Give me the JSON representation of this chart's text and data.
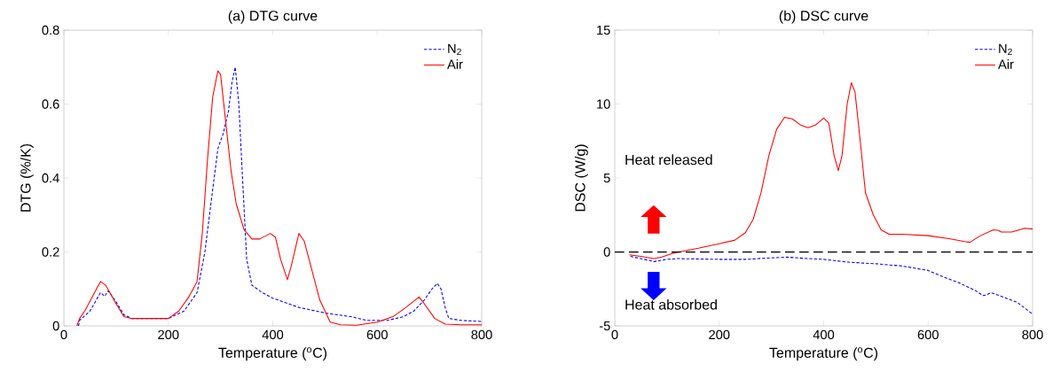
{
  "chart_data": [
    {
      "type": "line",
      "title": "(a) DTG curve",
      "xlabel": "Temperature ($^{o}$C)",
      "ylabel": "DTG (%/K)",
      "xlim": [
        0,
        800
      ],
      "ylim": [
        0,
        0.8
      ],
      "xticks": [
        0,
        200,
        400,
        600,
        800
      ],
      "yticks": [
        0,
        0.2,
        0.4,
        0.6,
        0.8
      ],
      "legend": "top right",
      "marker": "none",
      "series": [
        {
          "name": "N$_{2}$",
          "color": "#0000ff",
          "line_style": "dashed",
          "x": [
            28,
            30,
            50,
            70,
            78,
            85,
            100,
            115,
            130,
            200,
            230,
            255,
            270,
            285,
            295,
            305,
            315,
            322,
            328,
            335,
            342,
            350,
            360,
            380,
            400,
            450,
            500,
            550,
            580,
            620,
            650,
            670,
            690,
            705,
            715,
            722,
            730,
            737,
            760,
            800
          ],
          "values": [
            0,
            0.015,
            0.04,
            0.09,
            0.08,
            0.095,
            0.065,
            0.03,
            0.02,
            0.02,
            0.04,
            0.09,
            0.2,
            0.37,
            0.48,
            0.52,
            0.58,
            0.66,
            0.7,
            0.6,
            0.4,
            0.18,
            0.11,
            0.09,
            0.075,
            0.05,
            0.035,
            0.025,
            0.015,
            0.015,
            0.025,
            0.04,
            0.07,
            0.1,
            0.115,
            0.1,
            0.05,
            0.02,
            0.015,
            0.012
          ]
        },
        {
          "name": "Air",
          "color": "#ff0000",
          "line_style": "solid",
          "x": [
            25,
            30,
            40,
            55,
            70,
            80,
            100,
            115,
            130,
            160,
            200,
            220,
            240,
            255,
            265,
            275,
            285,
            295,
            300,
            310,
            320,
            330,
            345,
            360,
            375,
            395,
            405,
            415,
            428,
            435,
            450,
            460,
            475,
            490,
            510,
            530,
            560,
            600,
            630,
            655,
            680,
            690,
            710,
            730,
            760,
            800
          ],
          "values": [
            0,
            0.02,
            0.04,
            0.08,
            0.12,
            0.11,
            0.06,
            0.025,
            0.02,
            0.02,
            0.02,
            0.04,
            0.08,
            0.12,
            0.25,
            0.45,
            0.62,
            0.69,
            0.68,
            0.55,
            0.42,
            0.33,
            0.26,
            0.235,
            0.235,
            0.25,
            0.24,
            0.18,
            0.125,
            0.16,
            0.25,
            0.23,
            0.15,
            0.07,
            0.01,
            0.003,
            0.002,
            0.01,
            0.025,
            0.05,
            0.078,
            0.06,
            0.02,
            0.005,
            0.003,
            0.003
          ]
        }
      ]
    },
    {
      "type": "line",
      "title": "(b) DSC curve",
      "xlabel": "Temperature ($^{o}$C)",
      "ylabel": "DSC (W/g)",
      "xlim": [
        0,
        800
      ],
      "ylim": [
        -5,
        15
      ],
      "xticks": [
        0,
        200,
        400,
        600,
        800
      ],
      "yticks": [
        -5,
        0,
        5,
        10,
        15
      ],
      "legend": "top right",
      "marker": "none",
      "annotations": [
        "Heat released",
        "Heat absorbed"
      ],
      "ref_lines": [
        {
          "axis": "y",
          "value": 0,
          "color": "#000000",
          "line_style": "dashed"
        }
      ],
      "series": [
        {
          "name": "N$_{2}$",
          "color": "#0000ff",
          "line_style": "dashed",
          "x": [
            30,
            50,
            75,
            100,
            120,
            200,
            250,
            300,
            330,
            370,
            400,
            450,
            500,
            550,
            600,
            630,
            660,
            690,
            705,
            712,
            720,
            740,
            770,
            800
          ],
          "values": [
            -0.3,
            -0.45,
            -0.65,
            -0.5,
            -0.45,
            -0.5,
            -0.5,
            -0.4,
            -0.35,
            -0.45,
            -0.5,
            -0.7,
            -0.8,
            -0.95,
            -1.25,
            -1.7,
            -2.1,
            -2.6,
            -2.95,
            -2.9,
            -2.75,
            -3.0,
            -3.4,
            -4.2
          ]
        },
        {
          "name": "Air",
          "color": "#ff0000",
          "line_style": "solid",
          "x": [
            28,
            50,
            75,
            90,
            110,
            130,
            160,
            200,
            230,
            250,
            265,
            280,
            295,
            310,
            325,
            340,
            355,
            370,
            385,
            400,
            410,
            420,
            428,
            435,
            445,
            453,
            460,
            470,
            480,
            495,
            510,
            525,
            550,
            600,
            640,
            670,
            680,
            700,
            725,
            735,
            740,
            760,
            785,
            800
          ],
          "values": [
            -0.2,
            -0.3,
            -0.45,
            -0.35,
            -0.1,
            0.05,
            0.25,
            0.55,
            0.8,
            1.3,
            2.2,
            4.0,
            6.5,
            8.3,
            9.1,
            9.0,
            8.6,
            8.4,
            8.6,
            9.05,
            8.7,
            6.5,
            5.5,
            6.5,
            10.0,
            11.45,
            10.8,
            7.5,
            4.0,
            2.5,
            1.5,
            1.2,
            1.2,
            1.1,
            0.9,
            0.7,
            0.65,
            1.1,
            1.5,
            1.45,
            1.35,
            1.35,
            1.6,
            1.55
          ]
        }
      ]
    }
  ]
}
